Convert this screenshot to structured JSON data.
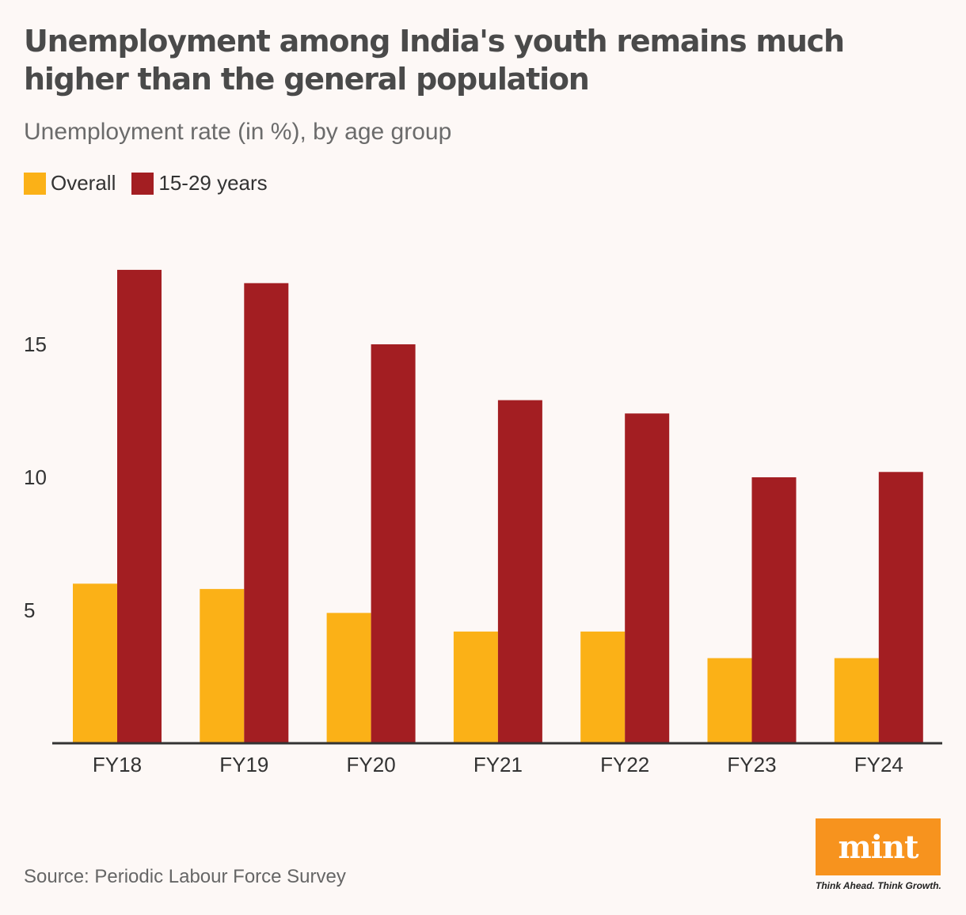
{
  "header": {
    "title": "Unemployment among India's youth remains much higher than the general population",
    "subtitle": "Unemployment rate (in %), by age group"
  },
  "legend": [
    {
      "label": "Overall",
      "color": "#fbb117"
    },
    {
      "label": "15-29 years",
      "color": "#a31e22"
    }
  ],
  "footer": {
    "source": "Source: Periodic Labour Force Survey",
    "brand": "mint",
    "tagline": "Think Ahead. Think Growth."
  },
  "chart_data": {
    "type": "bar",
    "categories": [
      "FY18",
      "FY19",
      "FY20",
      "FY21",
      "FY22",
      "FY23",
      "FY24"
    ],
    "series": [
      {
        "name": "Overall",
        "color": "#fbb117",
        "values": [
          6.0,
          5.8,
          4.9,
          4.2,
          4.2,
          3.2,
          3.2
        ]
      },
      {
        "name": "15-29 years",
        "color": "#a31e22",
        "values": [
          17.8,
          17.3,
          15.0,
          12.9,
          12.4,
          10.0,
          10.2
        ]
      }
    ],
    "yticks": [
      5,
      10,
      15
    ],
    "ylim": [
      0,
      19
    ],
    "grid": false
  }
}
